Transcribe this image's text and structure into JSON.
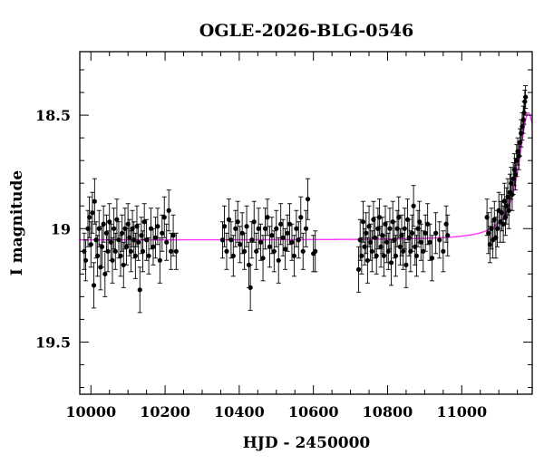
{
  "chart_data": {
    "type": "scatter",
    "title": "OGLE-2026-BLG-0546",
    "xlabel": "HJD - 2450000",
    "ylabel": "I magnitude",
    "xlim": [
      9970,
      11190
    ],
    "ylim": [
      19.73,
      18.22
    ],
    "y_inverted": true,
    "grid": false,
    "x_ticks": [
      10000,
      10200,
      10400,
      10600,
      10800,
      11000
    ],
    "x_tick_labels": [
      "10000",
      "10200",
      "10400",
      "10600",
      "10800",
      "11000"
    ],
    "y_ticks": [
      18.5,
      19,
      19.5
    ],
    "y_tick_labels": [
      "18.5",
      "19",
      "19.5"
    ],
    "colors": {
      "points": "#000000",
      "model": "#ff33ff",
      "frame": "#000000"
    },
    "model": {
      "name": "",
      "baseline": 19.05,
      "peak_time": 11180,
      "peak_mag": 18.49,
      "timescale": 55
    },
    "series": [
      {
        "points": [
          [
            9982,
            19.1,
            0.08
          ],
          [
            9986,
            19.14,
            0.09
          ],
          [
            9992,
            19.0,
            0.08
          ],
          [
            9996,
            18.95,
            0.09
          ],
          [
            10000,
            19.07,
            0.1
          ],
          [
            10004,
            18.93,
            0.09
          ],
          [
            10008,
            19.25,
            0.1
          ],
          [
            10010,
            18.88,
            0.1
          ],
          [
            10014,
            19.05,
            0.08
          ],
          [
            10018,
            19.12,
            0.09
          ],
          [
            10022,
            19.0,
            0.08
          ],
          [
            10026,
            19.17,
            0.1
          ],
          [
            10030,
            19.08,
            0.09
          ],
          [
            10034,
            18.98,
            0.08
          ],
          [
            10038,
            19.2,
            0.1
          ],
          [
            10042,
            19.02,
            0.08
          ],
          [
            10046,
            19.1,
            0.09
          ],
          [
            10050,
            18.97,
            0.08
          ],
          [
            10054,
            19.06,
            0.08
          ],
          [
            10058,
            19.14,
            0.1
          ],
          [
            10062,
            19.0,
            0.09
          ],
          [
            10066,
            19.1,
            0.08
          ],
          [
            10070,
            18.96,
            0.09
          ],
          [
            10075,
            19.05,
            0.08
          ],
          [
            10080,
            19.12,
            0.09
          ],
          [
            10084,
            19.02,
            0.08
          ],
          [
            10088,
            19.16,
            0.1
          ],
          [
            10092,
            19.0,
            0.09
          ],
          [
            10096,
            19.08,
            0.08
          ],
          [
            10100,
            18.98,
            0.09
          ],
          [
            10104,
            19.04,
            0.08
          ],
          [
            10108,
            19.1,
            0.09
          ],
          [
            10112,
            19.0,
            0.08
          ],
          [
            10116,
            19.05,
            0.08
          ],
          [
            10120,
            19.12,
            0.1
          ],
          [
            10124,
            18.99,
            0.09
          ],
          [
            10128,
            19.06,
            0.08
          ],
          [
            10132,
            19.27,
            0.1
          ],
          [
            10136,
            19.03,
            0.08
          ],
          [
            10140,
            19.1,
            0.09
          ],
          [
            10144,
            18.97,
            0.08
          ],
          [
            10150,
            19.05,
            0.09
          ],
          [
            10156,
            19.12,
            0.08
          ],
          [
            10162,
            19.0,
            0.09
          ],
          [
            10168,
            19.08,
            0.08
          ],
          [
            10174,
            19.04,
            0.09
          ],
          [
            10180,
            18.99,
            0.08
          ],
          [
            10186,
            19.14,
            0.1
          ],
          [
            10192,
            19.02,
            0.08
          ],
          [
            10198,
            18.95,
            0.09
          ],
          [
            10204,
            19.06,
            0.08
          ],
          [
            10210,
            18.92,
            0.09
          ],
          [
            10216,
            19.1,
            0.08
          ],
          [
            10222,
            19.03,
            0.09
          ],
          [
            10230,
            19.1,
            0.08
          ],
          [
            10355,
            19.05,
            0.08
          ],
          [
            10360,
            18.99,
            0.09
          ],
          [
            10366,
            19.1,
            0.08
          ],
          [
            10372,
            18.96,
            0.09
          ],
          [
            10378,
            19.05,
            0.08
          ],
          [
            10384,
            19.12,
            0.09
          ],
          [
            10390,
            19.0,
            0.08
          ],
          [
            10396,
            18.97,
            0.09
          ],
          [
            10402,
            19.07,
            0.08
          ],
          [
            10408,
            19.02,
            0.09
          ],
          [
            10414,
            19.1,
            0.08
          ],
          [
            10420,
            18.99,
            0.09
          ],
          [
            10426,
            19.16,
            0.1
          ],
          [
            10430,
            19.26,
            0.1
          ],
          [
            10434,
            19.05,
            0.08
          ],
          [
            10440,
            18.97,
            0.09
          ],
          [
            10446,
            19.1,
            0.08
          ],
          [
            10452,
            19.0,
            0.09
          ],
          [
            10458,
            19.06,
            0.08
          ],
          [
            10464,
            19.13,
            0.1
          ],
          [
            10470,
            19.0,
            0.09
          ],
          [
            10476,
            18.95,
            0.08
          ],
          [
            10482,
            19.08,
            0.09
          ],
          [
            10488,
            19.03,
            0.08
          ],
          [
            10494,
            19.1,
            0.09
          ],
          [
            10500,
            19.0,
            0.08
          ],
          [
            10506,
            19.14,
            0.1
          ],
          [
            10512,
            18.98,
            0.09
          ],
          [
            10518,
            19.04,
            0.08
          ],
          [
            10524,
            19.09,
            0.09
          ],
          [
            10530,
            19.02,
            0.08
          ],
          [
            10536,
            18.98,
            0.09
          ],
          [
            10542,
            19.06,
            0.08
          ],
          [
            10548,
            19.12,
            0.09
          ],
          [
            10554,
            19.0,
            0.08
          ],
          [
            10560,
            19.05,
            0.08
          ],
          [
            10566,
            18.95,
            0.09
          ],
          [
            10572,
            19.1,
            0.08
          ],
          [
            10580,
            19.0,
            0.08
          ],
          [
            10585,
            18.87,
            0.09
          ],
          [
            10600,
            19.11,
            0.08
          ],
          [
            10605,
            19.1,
            0.09
          ],
          [
            10722,
            19.18,
            0.1
          ],
          [
            10726,
            19.05,
            0.09
          ],
          [
            10730,
            19.12,
            0.08
          ],
          [
            10734,
            18.97,
            0.09
          ],
          [
            10738,
            19.08,
            0.08
          ],
          [
            10742,
            19.02,
            0.09
          ],
          [
            10746,
            19.14,
            0.1
          ],
          [
            10750,
            18.99,
            0.09
          ],
          [
            10754,
            19.06,
            0.08
          ],
          [
            10758,
            19.1,
            0.09
          ],
          [
            10762,
            18.96,
            0.08
          ],
          [
            10766,
            19.04,
            0.09
          ],
          [
            10770,
            19.12,
            0.08
          ],
          [
            10774,
            19.0,
            0.09
          ],
          [
            10778,
            18.95,
            0.08
          ],
          [
            10782,
            19.08,
            0.09
          ],
          [
            10786,
            19.03,
            0.08
          ],
          [
            10790,
            19.12,
            0.09
          ],
          [
            10794,
            18.98,
            0.08
          ],
          [
            10798,
            19.06,
            0.09
          ],
          [
            10802,
            19.1,
            0.08
          ],
          [
            10806,
            19.0,
            0.09
          ],
          [
            10810,
            19.15,
            0.1
          ],
          [
            10814,
            18.97,
            0.09
          ],
          [
            10818,
            19.05,
            0.08
          ],
          [
            10822,
            19.12,
            0.09
          ],
          [
            10826,
            19.0,
            0.08
          ],
          [
            10830,
            18.95,
            0.09
          ],
          [
            10834,
            19.08,
            0.08
          ],
          [
            10838,
            19.03,
            0.09
          ],
          [
            10842,
            19.1,
            0.08
          ],
          [
            10846,
            19.0,
            0.09
          ],
          [
            10850,
            19.16,
            0.1
          ],
          [
            10854,
            18.96,
            0.09
          ],
          [
            10858,
            19.04,
            0.08
          ],
          [
            10862,
            19.1,
            0.09
          ],
          [
            10866,
            19.02,
            0.08
          ],
          [
            10870,
            18.9,
            0.09
          ],
          [
            10874,
            19.08,
            0.08
          ],
          [
            10878,
            19.12,
            0.09
          ],
          [
            10882,
            19.0,
            0.08
          ],
          [
            10886,
            18.97,
            0.09
          ],
          [
            10890,
            19.06,
            0.08
          ],
          [
            10896,
            19.1,
            0.09
          ],
          [
            10902,
            19.02,
            0.08
          ],
          [
            10908,
            18.98,
            0.09
          ],
          [
            10914,
            19.06,
            0.08
          ],
          [
            10920,
            19.13,
            0.1
          ],
          [
            10930,
            19.02,
            0.09
          ],
          [
            10940,
            19.05,
            0.08
          ],
          [
            10950,
            19.1,
            0.09
          ],
          [
            10958,
            18.98,
            0.08
          ],
          [
            10962,
            19.03,
            0.09
          ],
          [
            11068,
            18.95,
            0.08
          ],
          [
            11072,
            19.02,
            0.09
          ],
          [
            11076,
            19.07,
            0.08
          ],
          [
            11080,
            19.0,
            0.09
          ],
          [
            11084,
            19.05,
            0.08
          ],
          [
            11088,
            18.96,
            0.08
          ],
          [
            11092,
            19.04,
            0.09
          ],
          [
            11096,
            19.0,
            0.08
          ],
          [
            11100,
            18.92,
            0.08
          ],
          [
            11104,
            18.97,
            0.09
          ],
          [
            11108,
            18.93,
            0.08
          ],
          [
            11112,
            18.98,
            0.08
          ],
          [
            11115,
            18.88,
            0.08
          ],
          [
            11118,
            18.95,
            0.08
          ],
          [
            11121,
            18.9,
            0.08
          ],
          [
            11124,
            18.86,
            0.08
          ],
          [
            11127,
            18.92,
            0.08
          ],
          [
            11130,
            18.84,
            0.08
          ],
          [
            11133,
            18.8,
            0.07
          ],
          [
            11136,
            18.85,
            0.07
          ],
          [
            11139,
            18.78,
            0.07
          ],
          [
            11142,
            18.74,
            0.07
          ],
          [
            11145,
            18.76,
            0.07
          ],
          [
            11148,
            18.7,
            0.07
          ],
          [
            11151,
            18.66,
            0.06
          ],
          [
            11154,
            18.68,
            0.06
          ],
          [
            11157,
            18.62,
            0.06
          ],
          [
            11160,
            18.58,
            0.06
          ],
          [
            11163,
            18.55,
            0.06
          ],
          [
            11166,
            18.52,
            0.06
          ],
          [
            11168,
            18.49,
            0.05
          ],
          [
            11170,
            18.44,
            0.05
          ],
          [
            11172,
            18.42,
            0.05
          ]
        ]
      }
    ]
  }
}
